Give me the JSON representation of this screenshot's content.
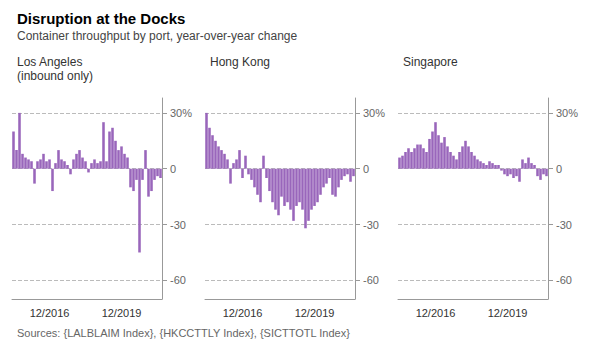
{
  "title": "Disruption at the Docks",
  "subtitle": "Container throughput by port, year-over-year change",
  "annotations": [
    "Sources: {LALBLAIM Index}, {HKCCTTLY Index}, {SICTTOTL Index}"
  ],
  "chart_data": [
    {
      "type": "bar",
      "title": "Los Angeles\n(inbound only)",
      "categories": [
        null,
        null,
        null,
        null,
        null,
        null,
        null,
        null,
        null,
        null,
        null,
        null,
        "12/2016",
        null,
        null,
        null,
        null,
        null,
        null,
        null,
        null,
        null,
        null,
        null,
        null,
        null,
        null,
        null,
        null,
        null,
        null,
        null,
        null,
        null,
        null,
        null,
        "12/2019",
        null,
        null,
        null,
        null,
        null,
        null,
        null,
        null,
        null,
        null,
        null,
        null,
        null
      ],
      "values": [
        20,
        10,
        30,
        8,
        6,
        5,
        4,
        -8,
        4,
        5,
        8,
        4,
        5,
        -12,
        3,
        10,
        5,
        4,
        2,
        -3,
        5,
        8,
        10,
        6,
        4,
        -2,
        3,
        5,
        3,
        4,
        25,
        4,
        20,
        22,
        15,
        10,
        12,
        8,
        6,
        -10,
        -12,
        -6,
        -45,
        -6,
        10,
        -15,
        -12,
        -6,
        -4,
        -5
      ],
      "color": "#9966BB",
      "ylim": [
        -70,
        38
      ],
      "yticks": [
        -60,
        -30,
        0,
        {
          "value": 30,
          "label": "30%"
        }
      ],
      "grid": true
    },
    {
      "type": "bar",
      "title": "Hong Kong",
      "categories": [
        null,
        null,
        null,
        null,
        null,
        null,
        null,
        null,
        null,
        null,
        null,
        null,
        "12/2016",
        null,
        null,
        null,
        null,
        null,
        null,
        null,
        null,
        null,
        null,
        null,
        null,
        null,
        null,
        null,
        null,
        null,
        null,
        null,
        null,
        null,
        null,
        null,
        "12/2019",
        null,
        null,
        null,
        null,
        null,
        null,
        null,
        null,
        null,
        null,
        null,
        null,
        null
      ],
      "values": [
        30,
        22,
        18,
        15,
        12,
        10,
        8,
        5,
        -8,
        3,
        5,
        10,
        -5,
        7,
        -3,
        -6,
        -10,
        -14,
        -18,
        7,
        -5,
        -12,
        -18,
        -22,
        -25,
        -15,
        -20,
        -18,
        -22,
        -28,
        -20,
        -18,
        -22,
        -32,
        -28,
        -22,
        -20,
        -18,
        -14,
        -10,
        -8,
        -5,
        -14,
        -15,
        -10,
        -6,
        -4,
        -3,
        -7,
        -4
      ],
      "color": "#9966BB",
      "ylim": [
        -70,
        38
      ],
      "yticks": [
        -60,
        -30,
        0,
        {
          "value": 30,
          "label": "30%"
        }
      ],
      "grid": true
    },
    {
      "type": "bar",
      "title": "Singapore",
      "categories": [
        null,
        null,
        null,
        null,
        null,
        null,
        null,
        null,
        null,
        null,
        null,
        null,
        "12/2016",
        null,
        null,
        null,
        null,
        null,
        null,
        null,
        null,
        null,
        null,
        null,
        null,
        null,
        null,
        null,
        null,
        null,
        null,
        null,
        null,
        null,
        null,
        null,
        "12/2019",
        null,
        null,
        null,
        null,
        null,
        null,
        null,
        null,
        null,
        null,
        null,
        null,
        null
      ],
      "values": [
        6,
        7,
        9,
        11,
        9,
        11,
        13,
        13,
        11,
        9,
        16,
        20,
        25,
        18,
        14,
        17,
        12,
        9,
        7,
        5,
        9,
        12,
        15,
        12,
        9,
        7,
        5,
        4,
        3,
        2,
        4,
        3,
        2,
        2,
        -1,
        -3,
        -4,
        -3,
        -5,
        -4,
        -7,
        5,
        3,
        6,
        3,
        2,
        -4,
        -6,
        -3,
        -4
      ],
      "color": "#9966BB",
      "ylim": [
        -70,
        38
      ],
      "yticks": [
        -60,
        -30,
        0,
        {
          "value": 30,
          "label": "30%"
        }
      ],
      "grid": true
    }
  ]
}
